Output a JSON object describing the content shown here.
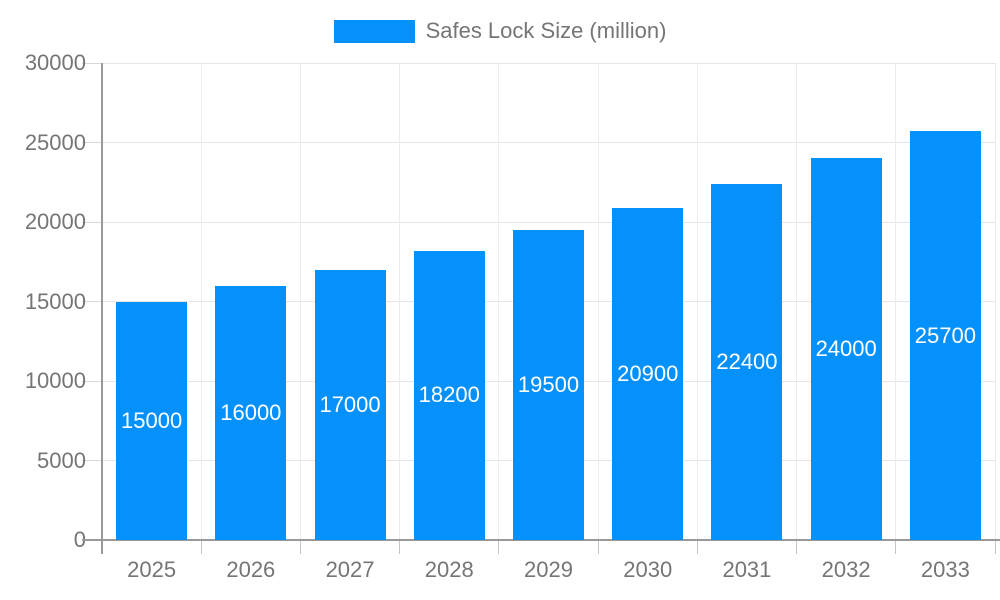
{
  "chart_data": {
    "type": "bar",
    "title": "Safes Lock Size (million)",
    "legend_entries": [
      "Safes Lock Size (million)"
    ],
    "legend_position": "top-center",
    "categories": [
      "2025",
      "2026",
      "2027",
      "2028",
      "2029",
      "2030",
      "2031",
      "2032",
      "2033"
    ],
    "values": [
      15000,
      16000,
      17000,
      18200,
      19500,
      20900,
      22400,
      24000,
      25700
    ],
    "value_labels_visible": true,
    "value_label_position": "inside-middle",
    "xlabel": "",
    "ylabel": "",
    "ylim": [
      0,
      30000
    ],
    "ytick_step": 5000,
    "ytick_labels": [
      "0",
      "5000",
      "10000",
      "15000",
      "20000",
      "25000",
      "30000"
    ],
    "grid": true,
    "colors": {
      "bar": "#0591FC",
      "value_label": "#FFFFFF",
      "axis_label": "#757575",
      "legend_label": "#757575",
      "axis_line": "#999999",
      "gridline_h": "#E6E6E6",
      "gridline_v": "#ECECEC",
      "tick": "#D9D9D9",
      "bottom_tick": "#C6C6C6",
      "background": "#FFFFFF"
    }
  }
}
